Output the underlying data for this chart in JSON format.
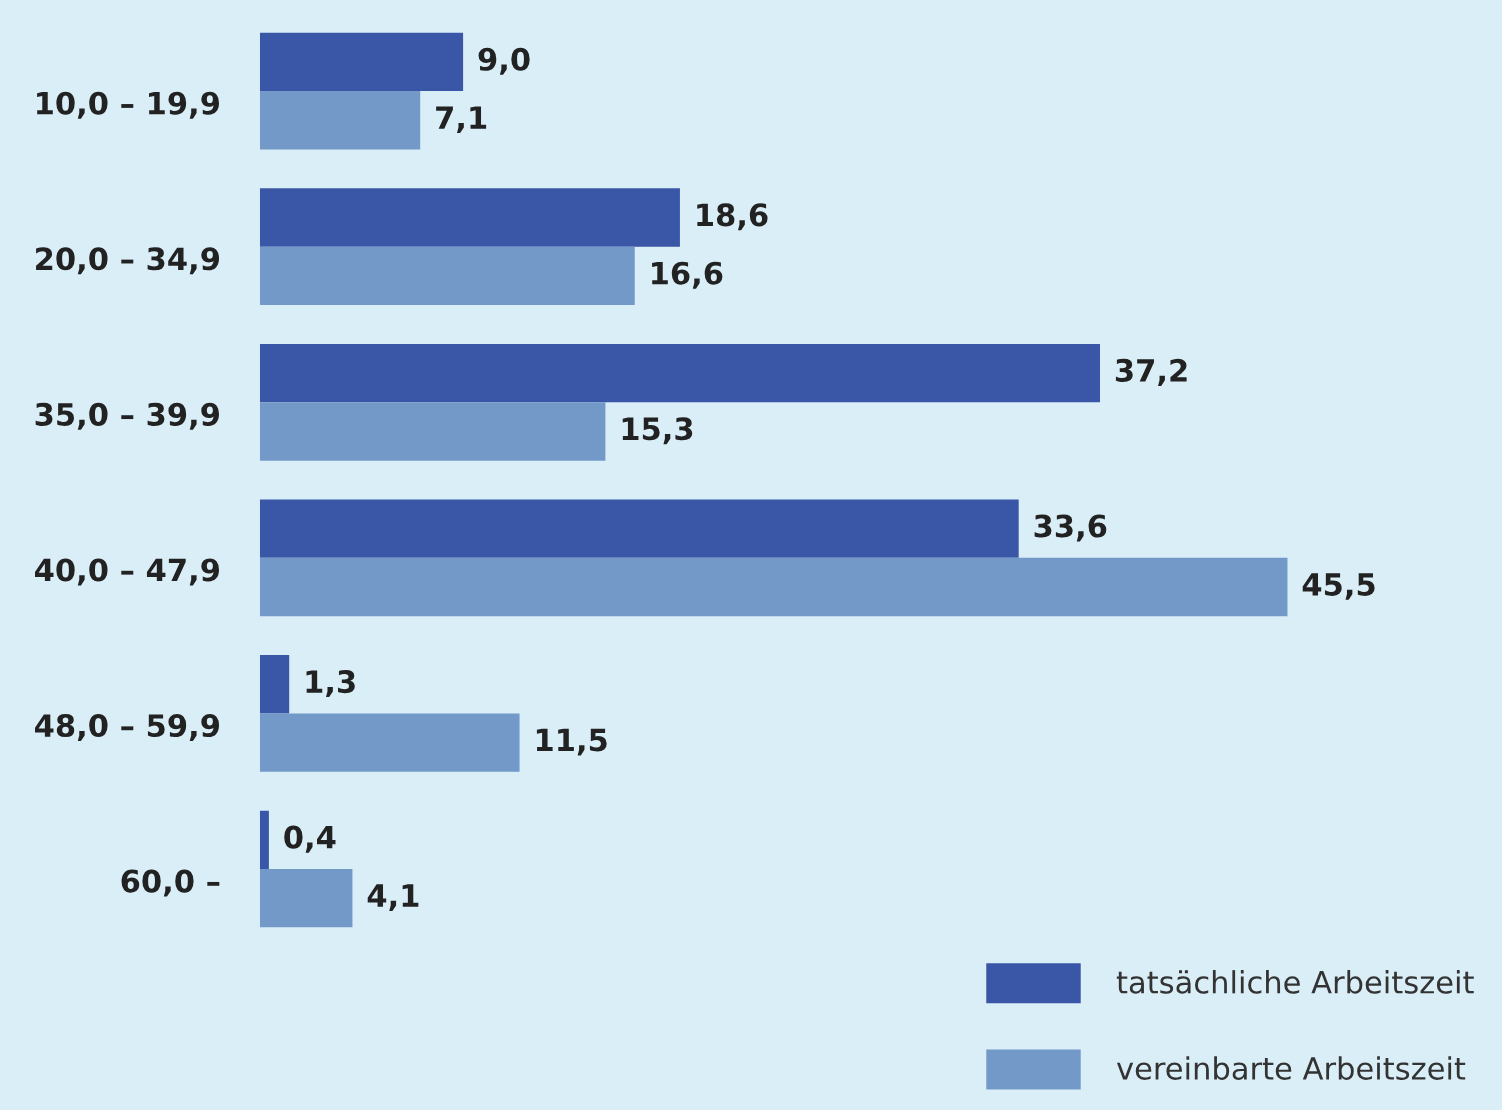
{
  "chart_data": {
    "type": "bar",
    "orientation": "horizontal",
    "categories": [
      "10,0 – 19,9",
      "20,0 – 34,9",
      "35,0 – 39,9",
      "40,0 – 47,9",
      "48,0 – 59,9",
      "60,0 –"
    ],
    "series": [
      {
        "name": "tatsächliche Arbeitszeit",
        "color": "#3a56a6",
        "values": [
          9.0,
          18.6,
          37.2,
          33.6,
          1.3,
          0.4
        ],
        "value_labels": [
          "9,0",
          "18,6",
          "37,2",
          "33,6",
          "1,3",
          "0,4"
        ]
      },
      {
        "name": "vereinbarte Arbeitszeit",
        "color": "#7399c8",
        "values": [
          7.1,
          16.6,
          15.3,
          45.5,
          11.5,
          4.1
        ],
        "value_labels": [
          "7,1",
          "16,6",
          "15,3",
          "45,5",
          "11,5",
          "4,1"
        ]
      }
    ],
    "xlim": [
      0,
      55
    ],
    "tick_labels": "y",
    "grid": false,
    "legend": "bottom right"
  }
}
